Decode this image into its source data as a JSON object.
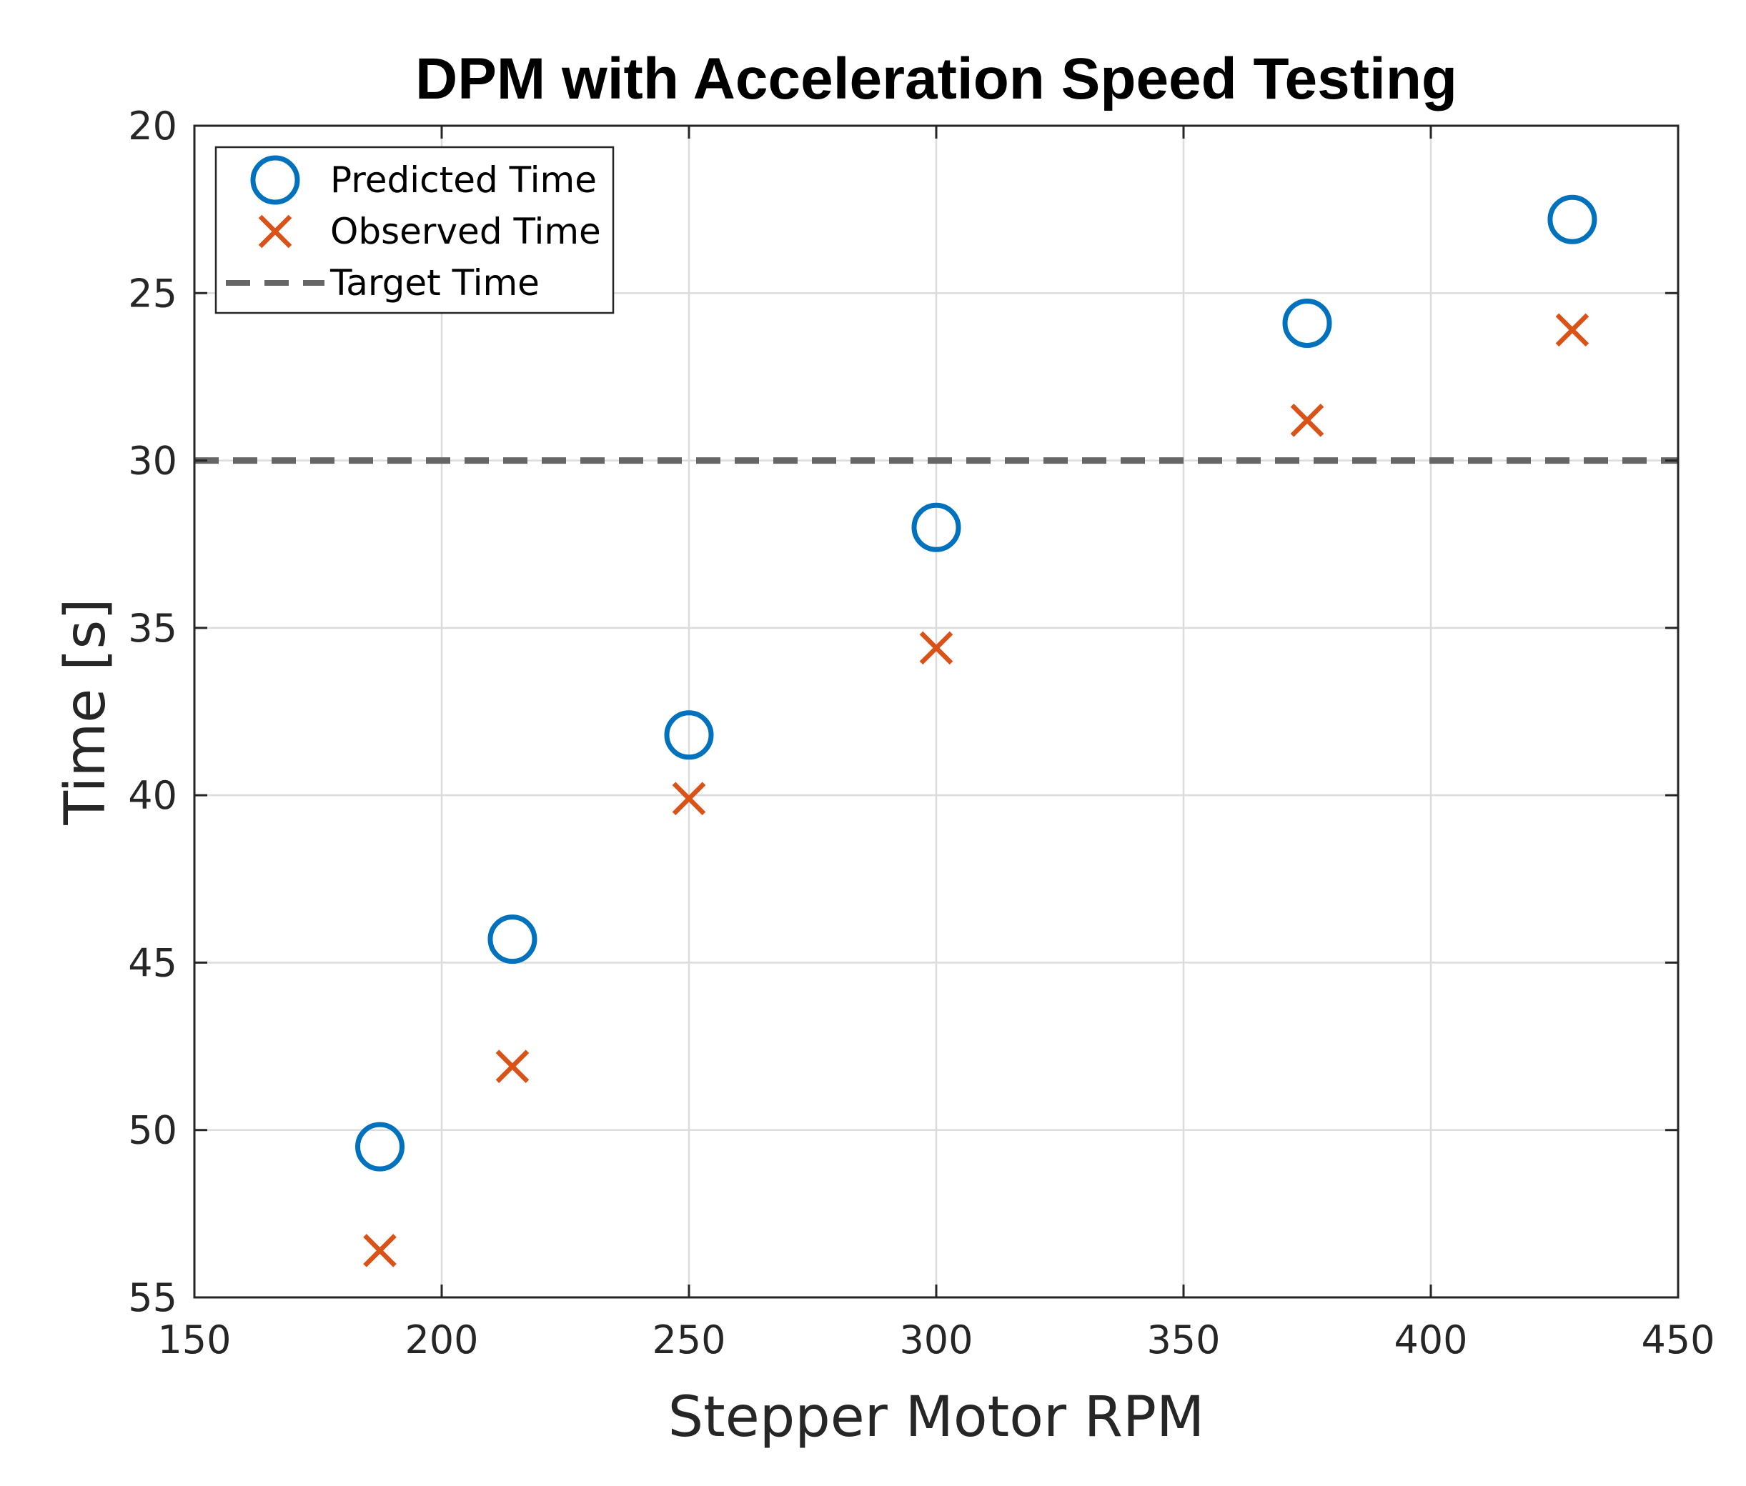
{
  "chart_data": {
    "type": "scatter",
    "title": "DPM with Acceleration Speed Testing",
    "xlabel": "Stepper Motor RPM",
    "ylabel": "Time [s]",
    "xlim": [
      150,
      450
    ],
    "ylim": [
      20,
      55
    ],
    "y_reversed": true,
    "xticks": [
      150,
      200,
      250,
      300,
      350,
      400,
      450
    ],
    "yticks": [
      20,
      25,
      30,
      35,
      40,
      45,
      50,
      55
    ],
    "grid": true,
    "legend_position": "top-left",
    "series": [
      {
        "name": "Predicted Time",
        "marker": "circle",
        "color": "#0072BD",
        "x": [
          187.5,
          214.3,
          250,
          300,
          375,
          428.6
        ],
        "y": [
          50.5,
          44.3,
          38.2,
          32.0,
          25.9,
          22.8
        ]
      },
      {
        "name": "Observed Time",
        "marker": "x",
        "color": "#D95319",
        "x": [
          187.5,
          214.3,
          250,
          300,
          375,
          428.6
        ],
        "y": [
          53.6,
          48.1,
          40.1,
          35.6,
          28.8,
          26.1
        ]
      }
    ],
    "reference_lines": [
      {
        "name": "Target Time",
        "orientation": "horizontal",
        "value": 30,
        "style": "dashed",
        "color": "#666666"
      }
    ]
  }
}
